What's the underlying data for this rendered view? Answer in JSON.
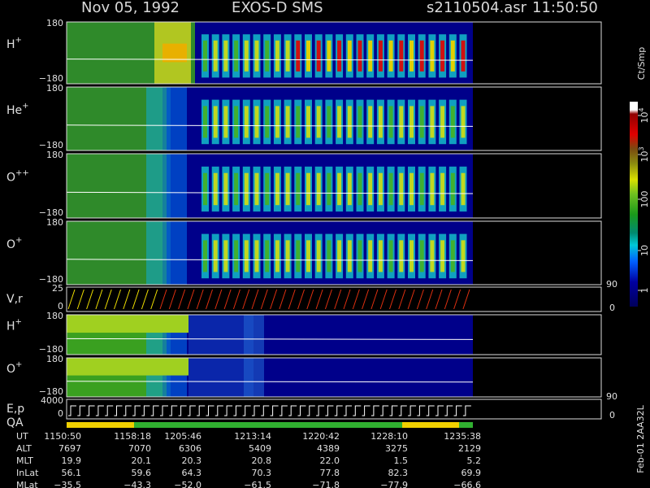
{
  "header": {
    "date": "Nov 05, 1992",
    "instrument": "EXOS-D SMS",
    "file": "s2110504.asr",
    "time": "11:50:50"
  },
  "panels": [
    {
      "label": "H",
      "sup": "+",
      "top": "180",
      "bottom": "−180"
    },
    {
      "label": "He",
      "sup": "+",
      "top": "180",
      "bottom": "−180"
    },
    {
      "label": "O",
      "sup": "++",
      "top": "180",
      "bottom": "−180"
    },
    {
      "label": "O",
      "sup": "+",
      "top": "180",
      "bottom": "−180"
    },
    {
      "label": "V,r",
      "top": "25",
      "bottom": "0",
      "right_top": "90",
      "right_bottom": "0"
    },
    {
      "label": "H",
      "sup": "+",
      "top": "180",
      "bottom": "−180"
    },
    {
      "label": "O",
      "sup": "+",
      "top": "180",
      "bottom": "−180"
    },
    {
      "label": "E,p",
      "top": "4000",
      "bottom": "0",
      "right_top": "90",
      "right_bottom": "0"
    }
  ],
  "qa_label": "QA",
  "colorbar": {
    "title": "Ct/Smp",
    "ticks": [
      {
        "base": "10",
        "exp": "4"
      },
      {
        "base": "10",
        "exp": "3"
      },
      {
        "base": "100"
      },
      {
        "base": "10"
      },
      {
        "base": "1"
      }
    ]
  },
  "table": {
    "rows": [
      {
        "label": "UT",
        "values": [
          "1150:50",
          "1158:18",
          "1205:46",
          "1213:14",
          "1220:42",
          "1228:10",
          "1235:38"
        ]
      },
      {
        "label": "ALT",
        "values": [
          "7697",
          "7070",
          "6306",
          "5409",
          "4389",
          "3275",
          "2129"
        ]
      },
      {
        "label": "MLT",
        "values": [
          "19.9",
          "20.1",
          "20.3",
          "20.8",
          "22.0",
          "1.5",
          "5.2"
        ]
      },
      {
        "label": "InLat",
        "values": [
          "56.1",
          "59.6",
          "64.3",
          "70.3",
          "77.8",
          "82.3",
          "69.9"
        ]
      },
      {
        "label": "MLat",
        "values": [
          "−35.5",
          "−43.3",
          "−52.0",
          "−61.5",
          "−71.8",
          "−77.9",
          "−66.6"
        ]
      }
    ]
  },
  "side_note": "Feb-01 2AA32L"
}
